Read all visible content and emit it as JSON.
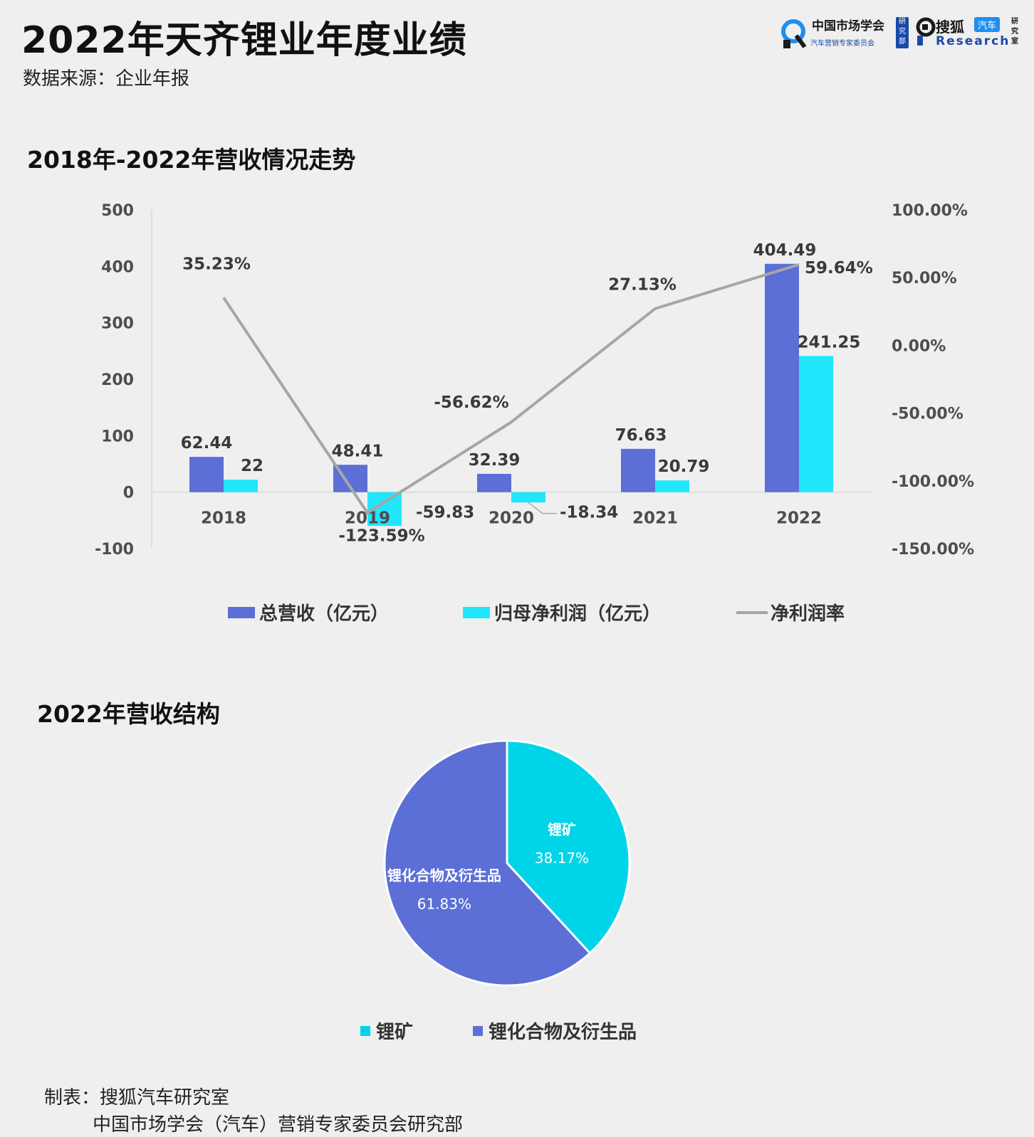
{
  "header": {
    "title": "2022年天齐锂业年度业绩",
    "source": "数据来源：企业年报"
  },
  "logos": {
    "cma_name": "中国市场学会",
    "cma_sub": "汽车营销专家委员会",
    "cma_tag": "研究部",
    "sohu_name": "搜狐",
    "sohu_badge": "汽车",
    "sohu_research": "Research",
    "sohu_research_cn": "研究室"
  },
  "sections": {
    "trend_title": "2018年-2022年营收情况走势",
    "structure_title": "2022年营收结构"
  },
  "chart_data": [
    {
      "type": "bar",
      "categories": [
        "2018",
        "2019",
        "2020",
        "2021",
        "2022"
      ],
      "series": [
        {
          "name": "总营收（亿元）",
          "axis": "left",
          "color": "#5b6fd6",
          "values": [
            62.44,
            48.41,
            32.39,
            76.63,
            404.49
          ],
          "labels": [
            "62.44",
            "48.41",
            "32.39",
            "76.63",
            "404.49"
          ]
        },
        {
          "name": "归母净利润（亿元）",
          "axis": "left",
          "color": "#21e6fb",
          "values": [
            22,
            -59.83,
            -18.34,
            20.79,
            241.25
          ],
          "labels": [
            "22",
            "-59.83",
            "-18.34",
            "20.79",
            "241.25"
          ]
        },
        {
          "name": "净利润率",
          "type": "line",
          "axis": "right",
          "color": "#a6a6a6",
          "values": [
            35.23,
            -123.59,
            -56.62,
            27.13,
            59.64
          ],
          "labels": [
            "35.23%",
            "-123.59%",
            "-56.62%",
            "27.13%",
            "59.64%"
          ]
        }
      ],
      "y_left": {
        "min": -100,
        "max": 500,
        "ticks": [
          "500",
          "400",
          "300",
          "200",
          "100",
          "0",
          "-100"
        ],
        "tick_values": [
          500,
          400,
          300,
          200,
          100,
          0,
          -100
        ]
      },
      "y_right": {
        "min": -150,
        "max": 100,
        "ticks": [
          "100.00%",
          "50.00%",
          "0.00%",
          "-50.00%",
          "-100.00%",
          "-150.00%"
        ],
        "tick_values": [
          100,
          50,
          0,
          -50,
          -100,
          -150
        ]
      },
      "grid": false,
      "legend_position": "bottom"
    },
    {
      "type": "pie",
      "slices": [
        {
          "name": "锂矿",
          "value": 38.17,
          "label": "38.17%",
          "color": "#00d4e8"
        },
        {
          "name": "锂化合物及衍生品",
          "value": 61.83,
          "label": "61.83%",
          "color": "#5b6fd6"
        }
      ],
      "legend_position": "bottom"
    }
  ],
  "footer": {
    "line1": "制表：搜狐汽车研究室",
    "line2": "中国市场学会（汽车）营销专家委员会研究部"
  }
}
